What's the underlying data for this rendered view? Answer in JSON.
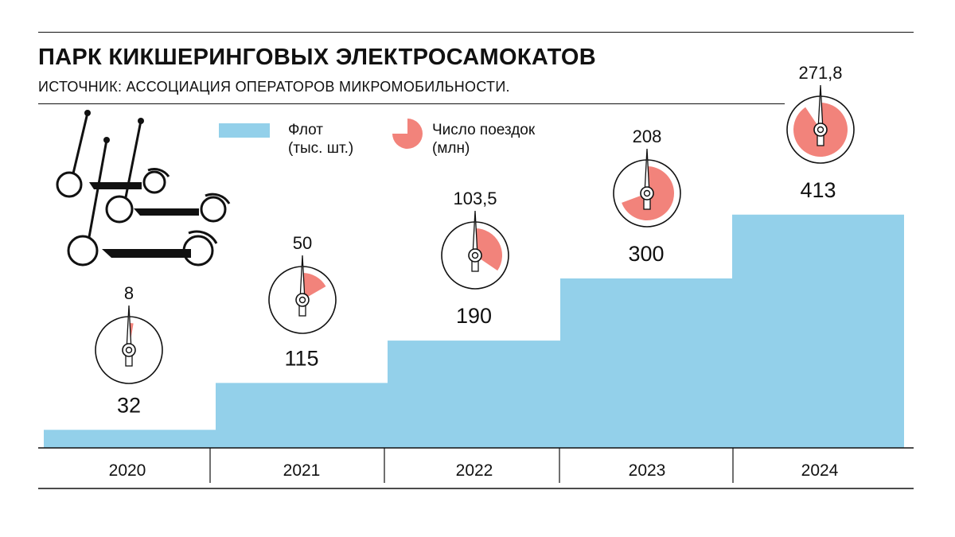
{
  "header": {
    "title": "ПАРК КИКШЕРИНГОВЫХ ЭЛЕКТРОСАМОКАТОВ",
    "subtitle": "ИСТОЧНИК: АССОЦИАЦИЯ ОПЕРАТОРОВ МИКРОМОБИЛЬНОСТИ."
  },
  "legend": {
    "fleet_label": "Флот\n(тыс. шт.)",
    "trips_label": "Число поездок\n(млн)"
  },
  "colors": {
    "fleet": "#93d0ea",
    "trips": "#f2837b",
    "ink": "#111111"
  },
  "chart_data": {
    "type": "bar",
    "categories": [
      "2020",
      "2021",
      "2022",
      "2023",
      "2024"
    ],
    "series": [
      {
        "name": "Флот (тыс. шт.)",
        "values": [
          32,
          115,
          190,
          300,
          413
        ],
        "labels": [
          "32",
          "115",
          "190",
          "300",
          "413"
        ]
      },
      {
        "name": "Число поездок (млн)",
        "values": [
          8,
          50,
          103.5,
          208,
          271.8
        ],
        "labels": [
          "8",
          "50",
          "103,5",
          "208",
          "271,8"
        ]
      }
    ]
  }
}
